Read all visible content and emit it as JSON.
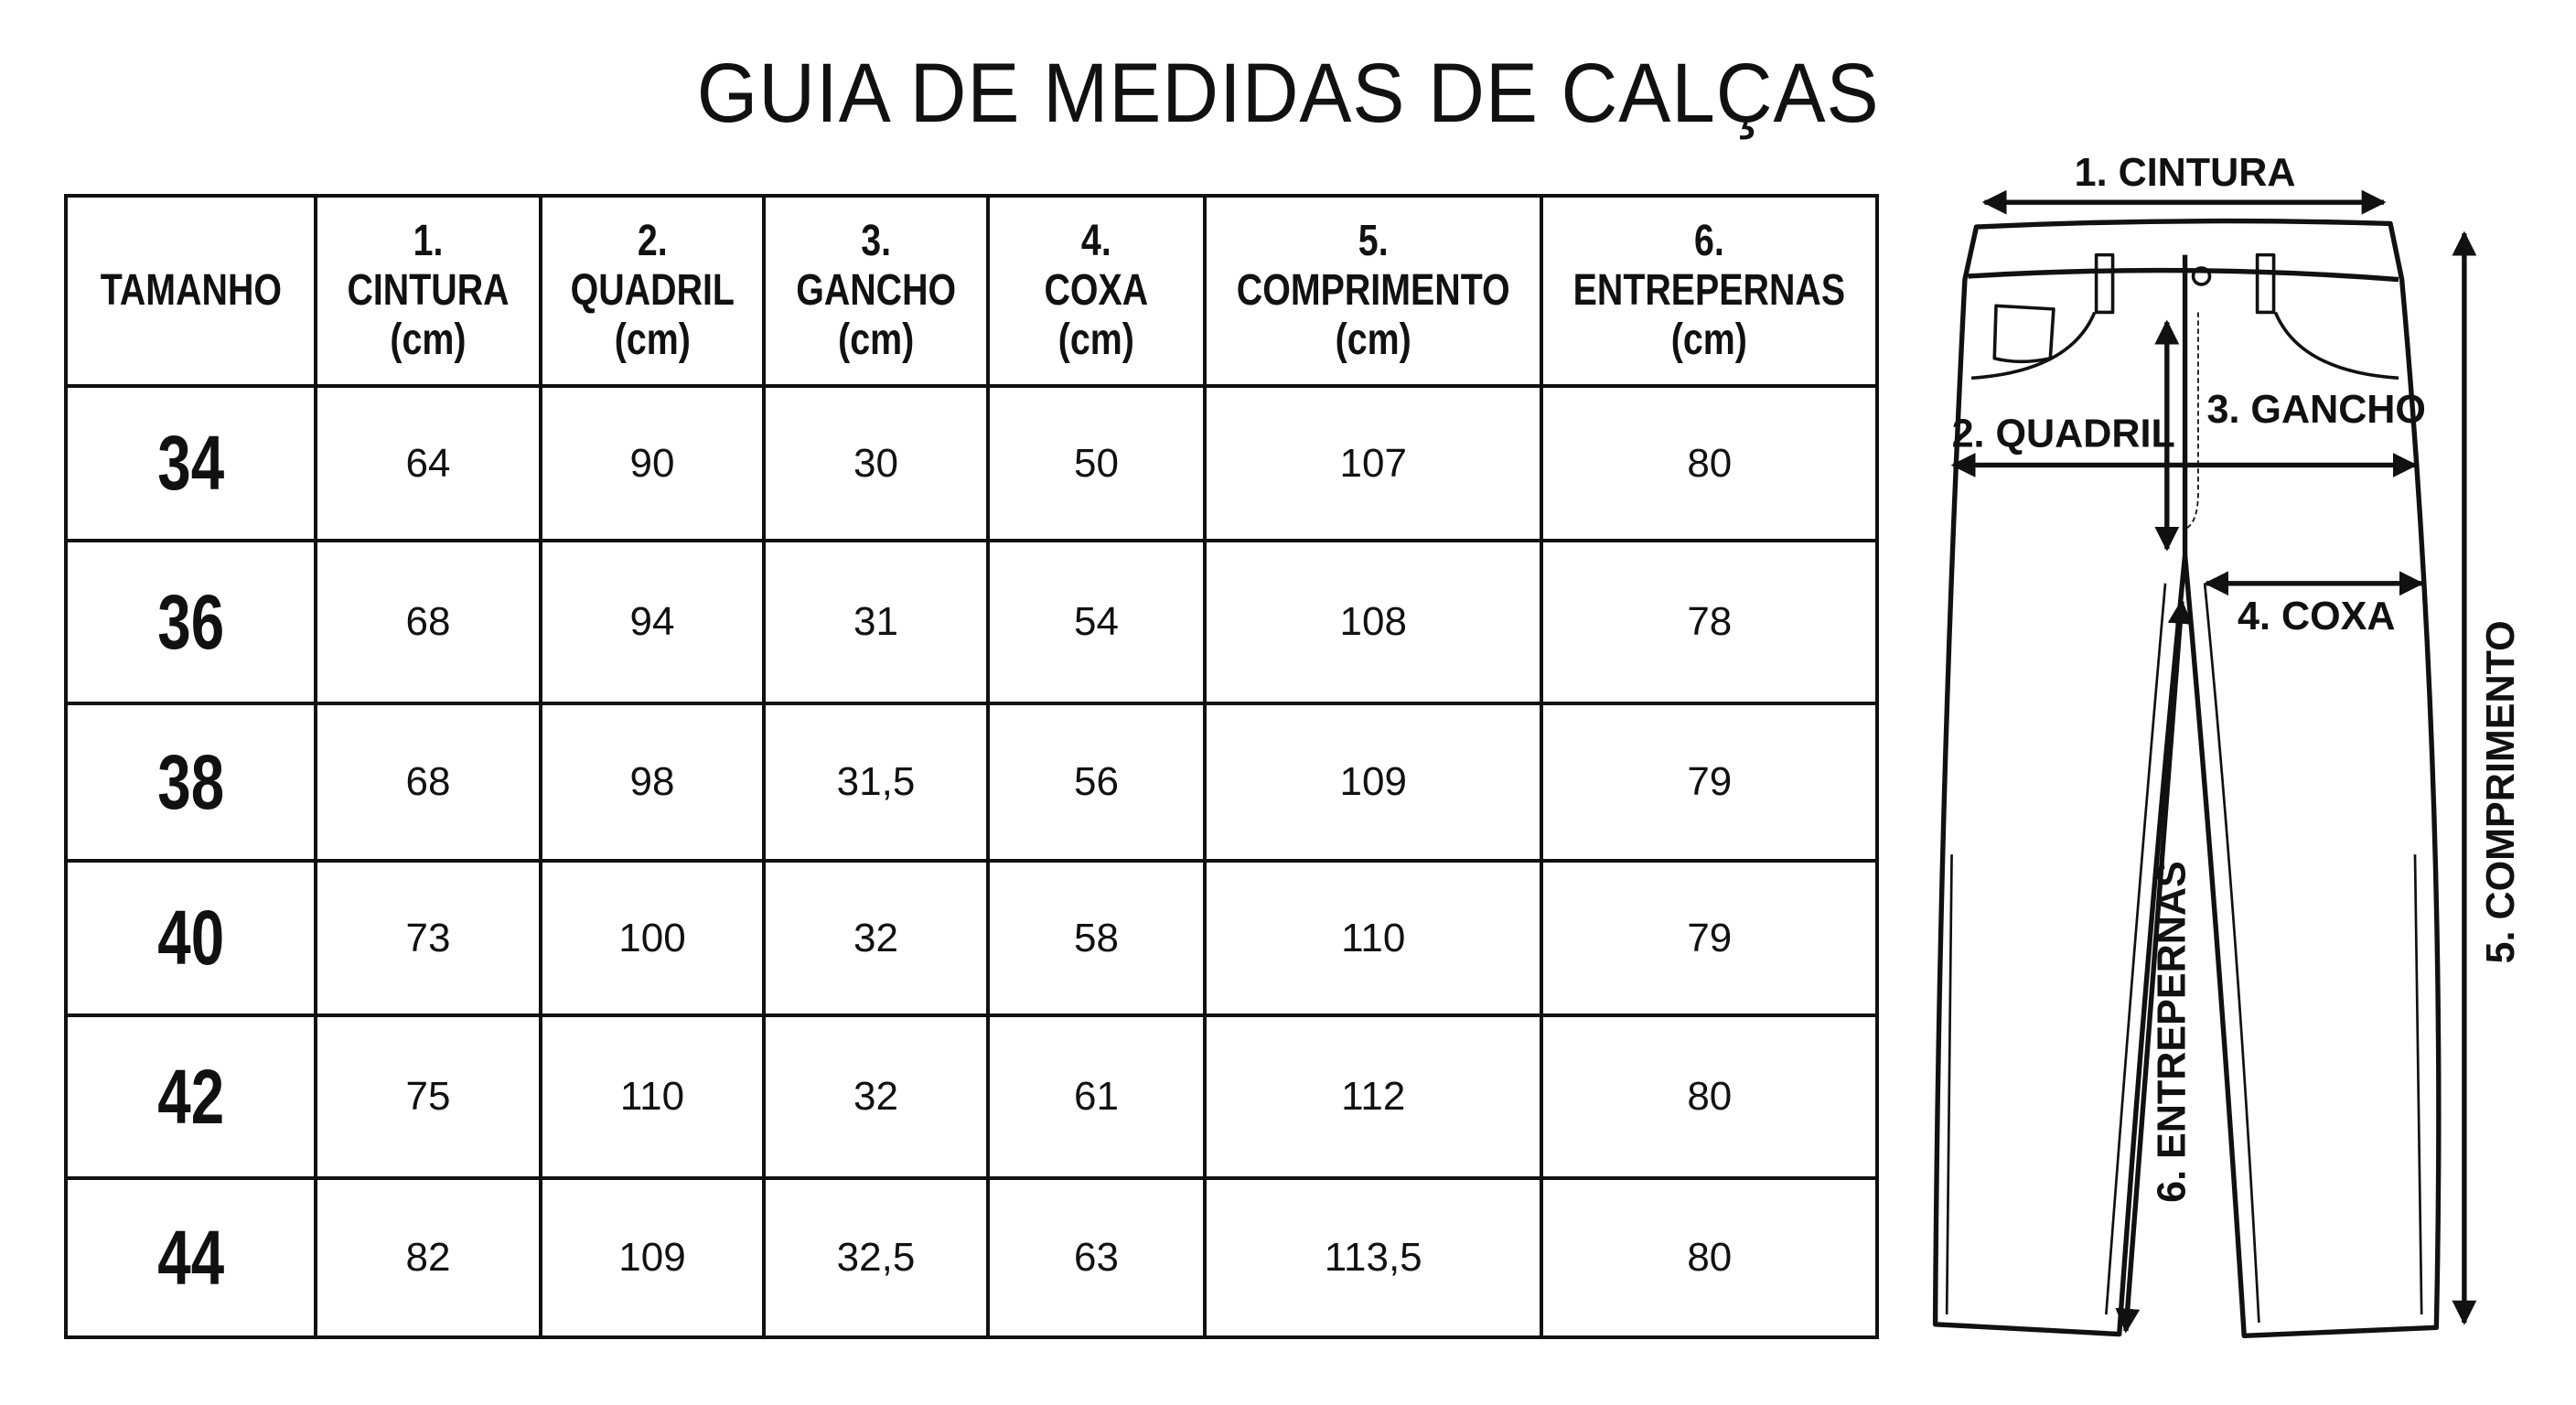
{
  "title": "GUIA DE MEDIDAS DE CALÇAS",
  "table": {
    "headers": [
      {
        "num": "",
        "name": "TAMANHO",
        "unit": ""
      },
      {
        "num": "1.",
        "name": "CINTURA",
        "unit": "(cm)"
      },
      {
        "num": "2.",
        "name": "QUADRIL",
        "unit": "(cm)"
      },
      {
        "num": "3.",
        "name": "GANCHO",
        "unit": "(cm)"
      },
      {
        "num": "4.",
        "name": "COXA",
        "unit": "(cm)"
      },
      {
        "num": "5.",
        "name": "COMPRIMENTO",
        "unit": "(cm)"
      },
      {
        "num": "6.",
        "name": "ENTREPERNAS",
        "unit": "(cm)"
      }
    ],
    "rows": [
      [
        "34",
        "64",
        "90",
        "30",
        "50",
        "107",
        "80"
      ],
      [
        "36",
        "68",
        "94",
        "31",
        "54",
        "108",
        "78"
      ],
      [
        "38",
        "68",
        "98",
        "31,5",
        "56",
        "109",
        "79"
      ],
      [
        "40",
        "73",
        "100",
        "32",
        "58",
        "110",
        "79"
      ],
      [
        "42",
        "75",
        "110",
        "32",
        "61",
        "112",
        "80"
      ],
      [
        "44",
        "82",
        "109",
        "32,5",
        "63",
        "113,5",
        "80"
      ]
    ]
  },
  "diagram": {
    "labels": {
      "cintura": "1. CINTURA",
      "quadril": "2. QUADRIL",
      "gancho": "3. GANCHO",
      "coxa": "4. COXA",
      "comprimento": "5. COMPRIMENTO",
      "entrepernas": "6. ENTREPERNAS"
    }
  }
}
